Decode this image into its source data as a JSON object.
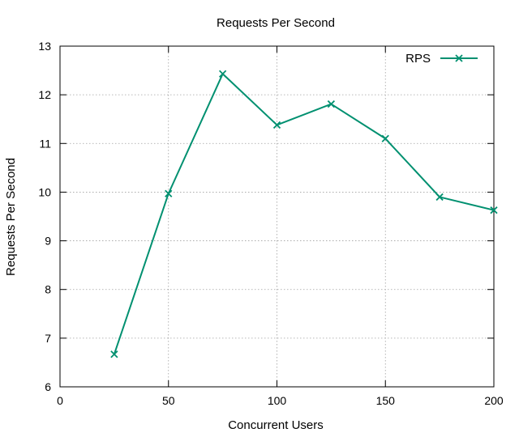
{
  "chart_data": {
    "type": "line",
    "title": "Requests Per Second",
    "xlabel": "Concurrent Users",
    "ylabel": "Requests Per Second",
    "xlim": [
      0,
      200
    ],
    "ylim": [
      6,
      13
    ],
    "xticks": [
      0,
      50,
      100,
      150,
      200
    ],
    "yticks": [
      6,
      7,
      8,
      9,
      10,
      11,
      12,
      13
    ],
    "grid": true,
    "legend": "top-right",
    "series": [
      {
        "name": "RPS",
        "color": "#009070",
        "marker": "x",
        "x": [
          25,
          50,
          75,
          100,
          125,
          150,
          175,
          200
        ],
        "y": [
          6.67,
          9.97,
          12.43,
          11.38,
          11.81,
          11.1,
          9.9,
          9.63
        ]
      }
    ]
  }
}
